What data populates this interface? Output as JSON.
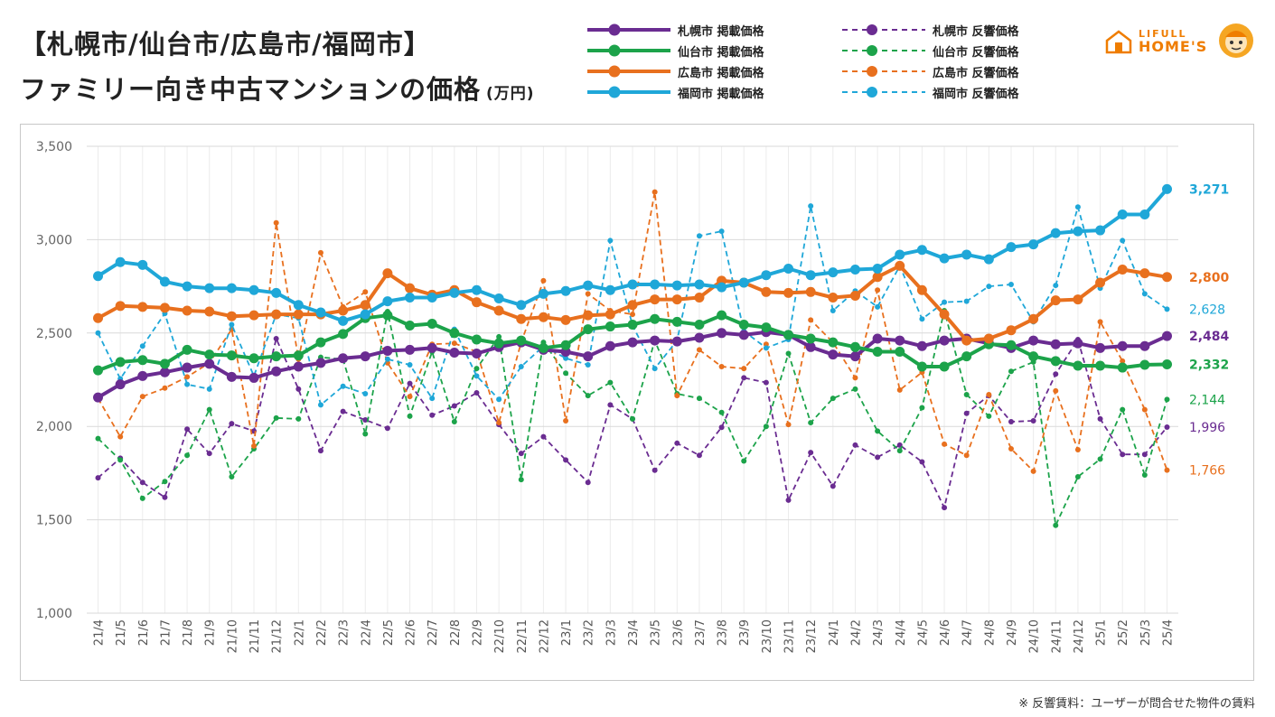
{
  "header": {
    "title_line1": "【札幌市/仙台市/広島市/福岡市】",
    "title_line2": "ファミリー向き中古マンションの価格",
    "unit": "(万円)"
  },
  "logo": {
    "line1": "LIFULL",
    "line2": "HOME'S",
    "icon": "home-icon",
    "color": "#ef7d00"
  },
  "footnote": "※ 反響賃料：ユーザーが問合せた物件の賃料",
  "legend": [
    {
      "label": "札幌市 掲載価格",
      "color": "#6a2c91",
      "style": "solid"
    },
    {
      "label": "仙台市 掲載価格",
      "color": "#1ca34a",
      "style": "solid"
    },
    {
      "label": "広島市 掲載価格",
      "color": "#e8701e",
      "style": "solid"
    },
    {
      "label": "福岡市 掲載価格",
      "color": "#1fa7d8",
      "style": "solid"
    },
    {
      "label": "札幌市 反響価格",
      "color": "#6a2c91",
      "style": "dashed"
    },
    {
      "label": "仙台市 反響価格",
      "color": "#1ca34a",
      "style": "dashed"
    },
    {
      "label": "広島市 反響価格",
      "color": "#e8701e",
      "style": "dashed"
    },
    {
      "label": "福岡市 反響価格",
      "color": "#1fa7d8",
      "style": "dashed"
    }
  ],
  "chart_data": {
    "type": "line",
    "title": "ファミリー向き中古マンションの価格",
    "ylim": [
      1000,
      3500
    ],
    "yticks": [
      1000,
      1500,
      2000,
      2500,
      3000,
      3500
    ],
    "ytick_labels": [
      "1,000",
      "1,500",
      "2,000",
      "2,500",
      "3,000",
      "3,500"
    ],
    "grid": true,
    "x": [
      "21/4",
      "21/5",
      "21/6",
      "21/7",
      "21/8",
      "21/9",
      "21/10",
      "21/11",
      "21/12",
      "22/1",
      "22/2",
      "22/3",
      "22/4",
      "22/5",
      "22/6",
      "22/7",
      "22/8",
      "22/9",
      "22/10",
      "22/11",
      "22/12",
      "23/1",
      "23/2",
      "23/3",
      "23/4",
      "23/5",
      "23/6",
      "23/7",
      "23/8",
      "23/9",
      "23/10",
      "23/11",
      "23/12",
      "24/1",
      "24/2",
      "24/3",
      "24/4",
      "24/5",
      "24/6",
      "24/7",
      "24/8",
      "24/9",
      "24/10",
      "24/11",
      "24/12",
      "25/1",
      "25/2",
      "25/3",
      "25/4"
    ],
    "series": [
      {
        "name": "札幌市 掲載価格",
        "color": "#6a2c91",
        "style": "solid",
        "end_label": "2,484",
        "values": [
          2155,
          2225,
          2270,
          2290,
          2315,
          2335,
          2265,
          2260,
          2295,
          2320,
          2340,
          2365,
          2375,
          2405,
          2410,
          2420,
          2395,
          2390,
          2425,
          2450,
          2410,
          2400,
          2375,
          2430,
          2450,
          2460,
          2455,
          2475,
          2500,
          2490,
          2505,
          2490,
          2425,
          2385,
          2375,
          2470,
          2460,
          2430,
          2460,
          2470,
          2445,
          2420,
          2460,
          2440,
          2445,
          2420,
          2430,
          2430,
          2484
        ]
      },
      {
        "name": "仙台市 掲載価格",
        "color": "#1ca34a",
        "style": "solid",
        "end_label": "2,332",
        "values": [
          2300,
          2345,
          2355,
          2335,
          2410,
          2385,
          2380,
          2365,
          2375,
          2380,
          2450,
          2495,
          2580,
          2595,
          2540,
          2550,
          2500,
          2465,
          2445,
          2460,
          2420,
          2435,
          2520,
          2535,
          2545,
          2575,
          2560,
          2545,
          2595,
          2545,
          2530,
          2490,
          2470,
          2450,
          2425,
          2400,
          2400,
          2320,
          2320,
          2375,
          2440,
          2435,
          2375,
          2350,
          2325,
          2325,
          2315,
          2330,
          2332
        ]
      },
      {
        "name": "広島市 掲載価格",
        "color": "#e8701e",
        "style": "solid",
        "end_label": "2,800",
        "values": [
          2580,
          2645,
          2640,
          2635,
          2620,
          2615,
          2590,
          2595,
          2600,
          2600,
          2600,
          2620,
          2650,
          2820,
          2740,
          2705,
          2730,
          2665,
          2620,
          2575,
          2585,
          2570,
          2595,
          2600,
          2650,
          2680,
          2680,
          2690,
          2780,
          2770,
          2720,
          2715,
          2720,
          2690,
          2700,
          2800,
          2860,
          2730,
          2600,
          2460,
          2470,
          2515,
          2575,
          2675,
          2680,
          2770,
          2840,
          2820,
          2800
        ]
      },
      {
        "name": "福岡市 掲載価格",
        "color": "#1fa7d8",
        "style": "solid",
        "end_label": "3,271",
        "values": [
          2805,
          2880,
          2865,
          2775,
          2750,
          2740,
          2740,
          2730,
          2715,
          2650,
          2610,
          2565,
          2600,
          2670,
          2690,
          2690,
          2715,
          2730,
          2685,
          2650,
          2710,
          2725,
          2755,
          2730,
          2760,
          2760,
          2755,
          2760,
          2745,
          2770,
          2810,
          2845,
          2810,
          2825,
          2840,
          2845,
          2920,
          2945,
          2900,
          2920,
          2895,
          2960,
          2975,
          3035,
          3045,
          3050,
          3135,
          3135,
          3271
        ]
      },
      {
        "name": "札幌市 反響価格",
        "color": "#6a2c91",
        "style": "dashed",
        "end_label": "1,996",
        "values": [
          1725,
          1830,
          1700,
          1620,
          1985,
          1855,
          2015,
          1975,
          2470,
          2200,
          1870,
          2080,
          2035,
          1990,
          2230,
          2060,
          2110,
          2180,
          2010,
          1855,
          1945,
          1820,
          1700,
          2115,
          2040,
          1765,
          1910,
          1845,
          1995,
          2260,
          2235,
          1605,
          1860,
          1680,
          1900,
          1835,
          1900,
          1810,
          1565,
          2070,
          2165,
          2025,
          2030,
          2280,
          2465,
          2040,
          1850,
          1850,
          1996
        ]
      },
      {
        "name": "仙台市 反響価格",
        "color": "#1ca34a",
        "style": "dashed",
        "end_label": "2,144",
        "values": [
          1935,
          1820,
          1615,
          1705,
          1845,
          2090,
          1730,
          1880,
          2045,
          2040,
          2370,
          2360,
          1960,
          2615,
          2055,
          2400,
          2025,
          2310,
          2480,
          1715,
          2450,
          2285,
          2165,
          2235,
          2040,
          2460,
          2175,
          2150,
          2075,
          1815,
          2000,
          2390,
          2020,
          2150,
          2200,
          1975,
          1870,
          2100,
          2620,
          2170,
          2055,
          2295,
          2345,
          1470,
          1730,
          1825,
          2090,
          1740,
          2144
        ]
      },
      {
        "name": "広島市 反響価格",
        "color": "#e8701e",
        "style": "dashed",
        "end_label": "1,766",
        "values": [
          2150,
          1945,
          2160,
          2205,
          2265,
          2340,
          2520,
          1895,
          3090,
          2360,
          2930,
          2640,
          2720,
          2340,
          2160,
          2440,
          2445,
          2400,
          2020,
          2450,
          2780,
          2030,
          2710,
          2620,
          2600,
          3255,
          2165,
          2410,
          2320,
          2310,
          2440,
          2010,
          2570,
          2450,
          2260,
          2730,
          2195,
          2290,
          1905,
          1845,
          2170,
          1880,
          1760,
          2190,
          1875,
          2560,
          2350,
          2090,
          1766
        ]
      },
      {
        "name": "福岡市 反響価格",
        "color": "#1fa7d8",
        "style": "dashed",
        "end_label": "2,628",
        "values": [
          2500,
          2255,
          2430,
          2605,
          2225,
          2200,
          2545,
          2270,
          2600,
          2580,
          2115,
          2215,
          2175,
          2360,
          2330,
          2150,
          2520,
          2270,
          2145,
          2320,
          2430,
          2365,
          2330,
          2995,
          2540,
          2310,
          2460,
          3020,
          3045,
          2510,
          2420,
          2465,
          3180,
          2620,
          2725,
          2640,
          2860,
          2575,
          2665,
          2670,
          2750,
          2760,
          2560,
          2755,
          3175,
          2740,
          2995,
          2710,
          2628
        ]
      }
    ]
  }
}
